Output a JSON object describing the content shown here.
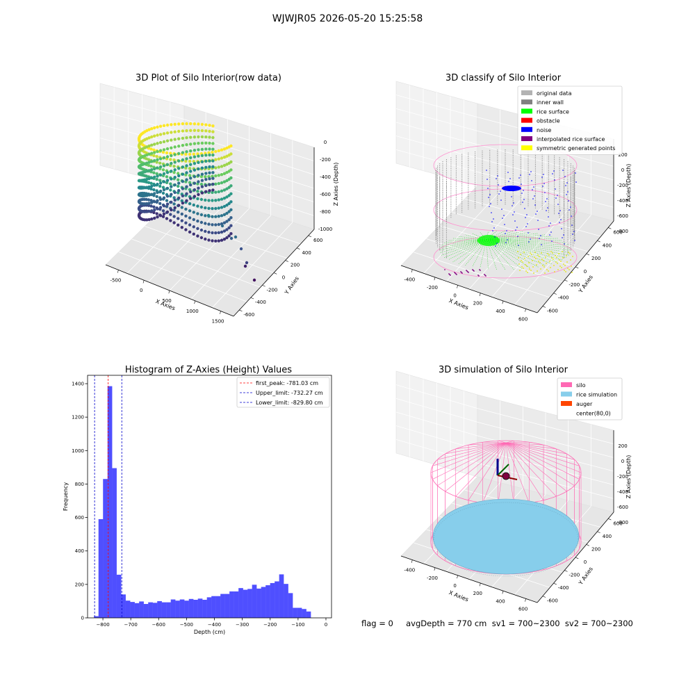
{
  "figure": {
    "suptitle": "WJWJR05 2026-05-20 15:25:58",
    "status_text": "flag = 0     avgDepth = 770 cm  sv1 = 700~2300  sv2 = 700~2300"
  },
  "chart_data": [
    {
      "type": "scatter",
      "subtype": "3d",
      "title": "3D Plot of Silo Interior(row data)",
      "xlabel": "X Axies",
      "ylabel": "Y Axies",
      "zlabel": "Z Axies (Depth)",
      "x_ticks": [
        "-500",
        "0",
        "500",
        "1000",
        "1500"
      ],
      "y_ticks": [
        "-600",
        "-400",
        "-200",
        "0",
        "200",
        "400",
        "600"
      ],
      "z_ticks": [
        "0",
        "-200",
        "-400",
        "-600",
        "-800",
        "-1000"
      ],
      "xlim": [
        -600,
        1600
      ],
      "ylim": [
        -650,
        650
      ],
      "zlim": [
        -1100,
        50
      ],
      "colormap": "viridis",
      "grid": true
    },
    {
      "type": "scatter",
      "subtype": "3d",
      "title": "3D classify of Silo Interior",
      "xlabel": "X Axies",
      "ylabel": "Y Axies",
      "zlabel": "Z Axies (Depth)",
      "x_ticks": [
        "-400",
        "-200",
        "0",
        "200",
        "400",
        "600"
      ],
      "y_ticks": [
        "-600",
        "-400",
        "-200",
        "0",
        "200",
        "400",
        "600"
      ],
      "z_ticks": [
        "200",
        "0",
        "-200",
        "-400",
        "-600",
        "-800"
      ],
      "legend_position": "top-right",
      "legend": [
        {
          "label": "original data",
          "color": "#b3b3b3"
        },
        {
          "label": "inner wall",
          "color": "#808080"
        },
        {
          "label": "rice surface",
          "color": "#00ff00"
        },
        {
          "label": "obstacle",
          "color": "#ff0000"
        },
        {
          "label": "noise",
          "color": "#0000ff"
        },
        {
          "label": "interpolated rice surface",
          "color": "#800080"
        },
        {
          "label": "symmetric generated points",
          "color": "#ffff00"
        }
      ],
      "grid": true
    },
    {
      "type": "bar",
      "subtype": "histogram",
      "title": "Histogram of Z-Axies (Height) Values",
      "xlabel": "Depth (cm)",
      "ylabel": "Frequency",
      "xlim": [
        -855,
        20
      ],
      "ylim": [
        0,
        1450
      ],
      "x_ticks": [
        -800,
        -700,
        -600,
        -500,
        -400,
        -300,
        -200,
        -100,
        0
      ],
      "y_ticks": [
        0,
        200,
        400,
        600,
        800,
        1000,
        1200,
        1400
      ],
      "bar_color": "#4f4fff",
      "bin_start": -832,
      "bin_width": 16.2,
      "values": [
        10,
        590,
        830,
        1385,
        895,
        258,
        140,
        103,
        95,
        88,
        98,
        83,
        93,
        90,
        100,
        93,
        93,
        110,
        103,
        110,
        103,
        113,
        108,
        115,
        108,
        123,
        130,
        130,
        143,
        143,
        158,
        158,
        178,
        168,
        173,
        198,
        175,
        185,
        195,
        208,
        218,
        260,
        203,
        148,
        60,
        60,
        53,
        38
      ],
      "vlines": [
        {
          "label": "first_peak: -781.03 cm",
          "x": -781.03,
          "color": "#ff0000"
        },
        {
          "label": "Upper_limit: -732.27 cm",
          "x": -732.27,
          "color": "#0000cc"
        },
        {
          "label": "Lower_limit: -829.80 cm",
          "x": -829.8,
          "color": "#0000cc"
        }
      ],
      "legend_position": "top-right",
      "grid": false
    },
    {
      "type": "scatter",
      "subtype": "3d",
      "title": "3D simulation of Silo Interior",
      "xlabel": "X Axies",
      "ylabel": "Y Axies",
      "zlabel": "Z Axies (Depth)",
      "x_ticks": [
        "-400",
        "-200",
        "0",
        "200",
        "400",
        "600"
      ],
      "y_ticks": [
        "-600",
        "-400",
        "-200",
        "0",
        "200",
        "400",
        "600"
      ],
      "z_ticks": [
        "200",
        "0",
        "-200",
        "-400",
        "-600",
        "-800"
      ],
      "legend_position": "top-right",
      "legend": [
        {
          "label": "silo",
          "color": "#ff69b4"
        },
        {
          "label": "rice simulation",
          "color": "#87ceeb"
        },
        {
          "label": "auger",
          "color": "#ff4500"
        },
        {
          "label": "center(80,0)",
          "color": "#ffffff"
        }
      ],
      "grid": true
    }
  ]
}
